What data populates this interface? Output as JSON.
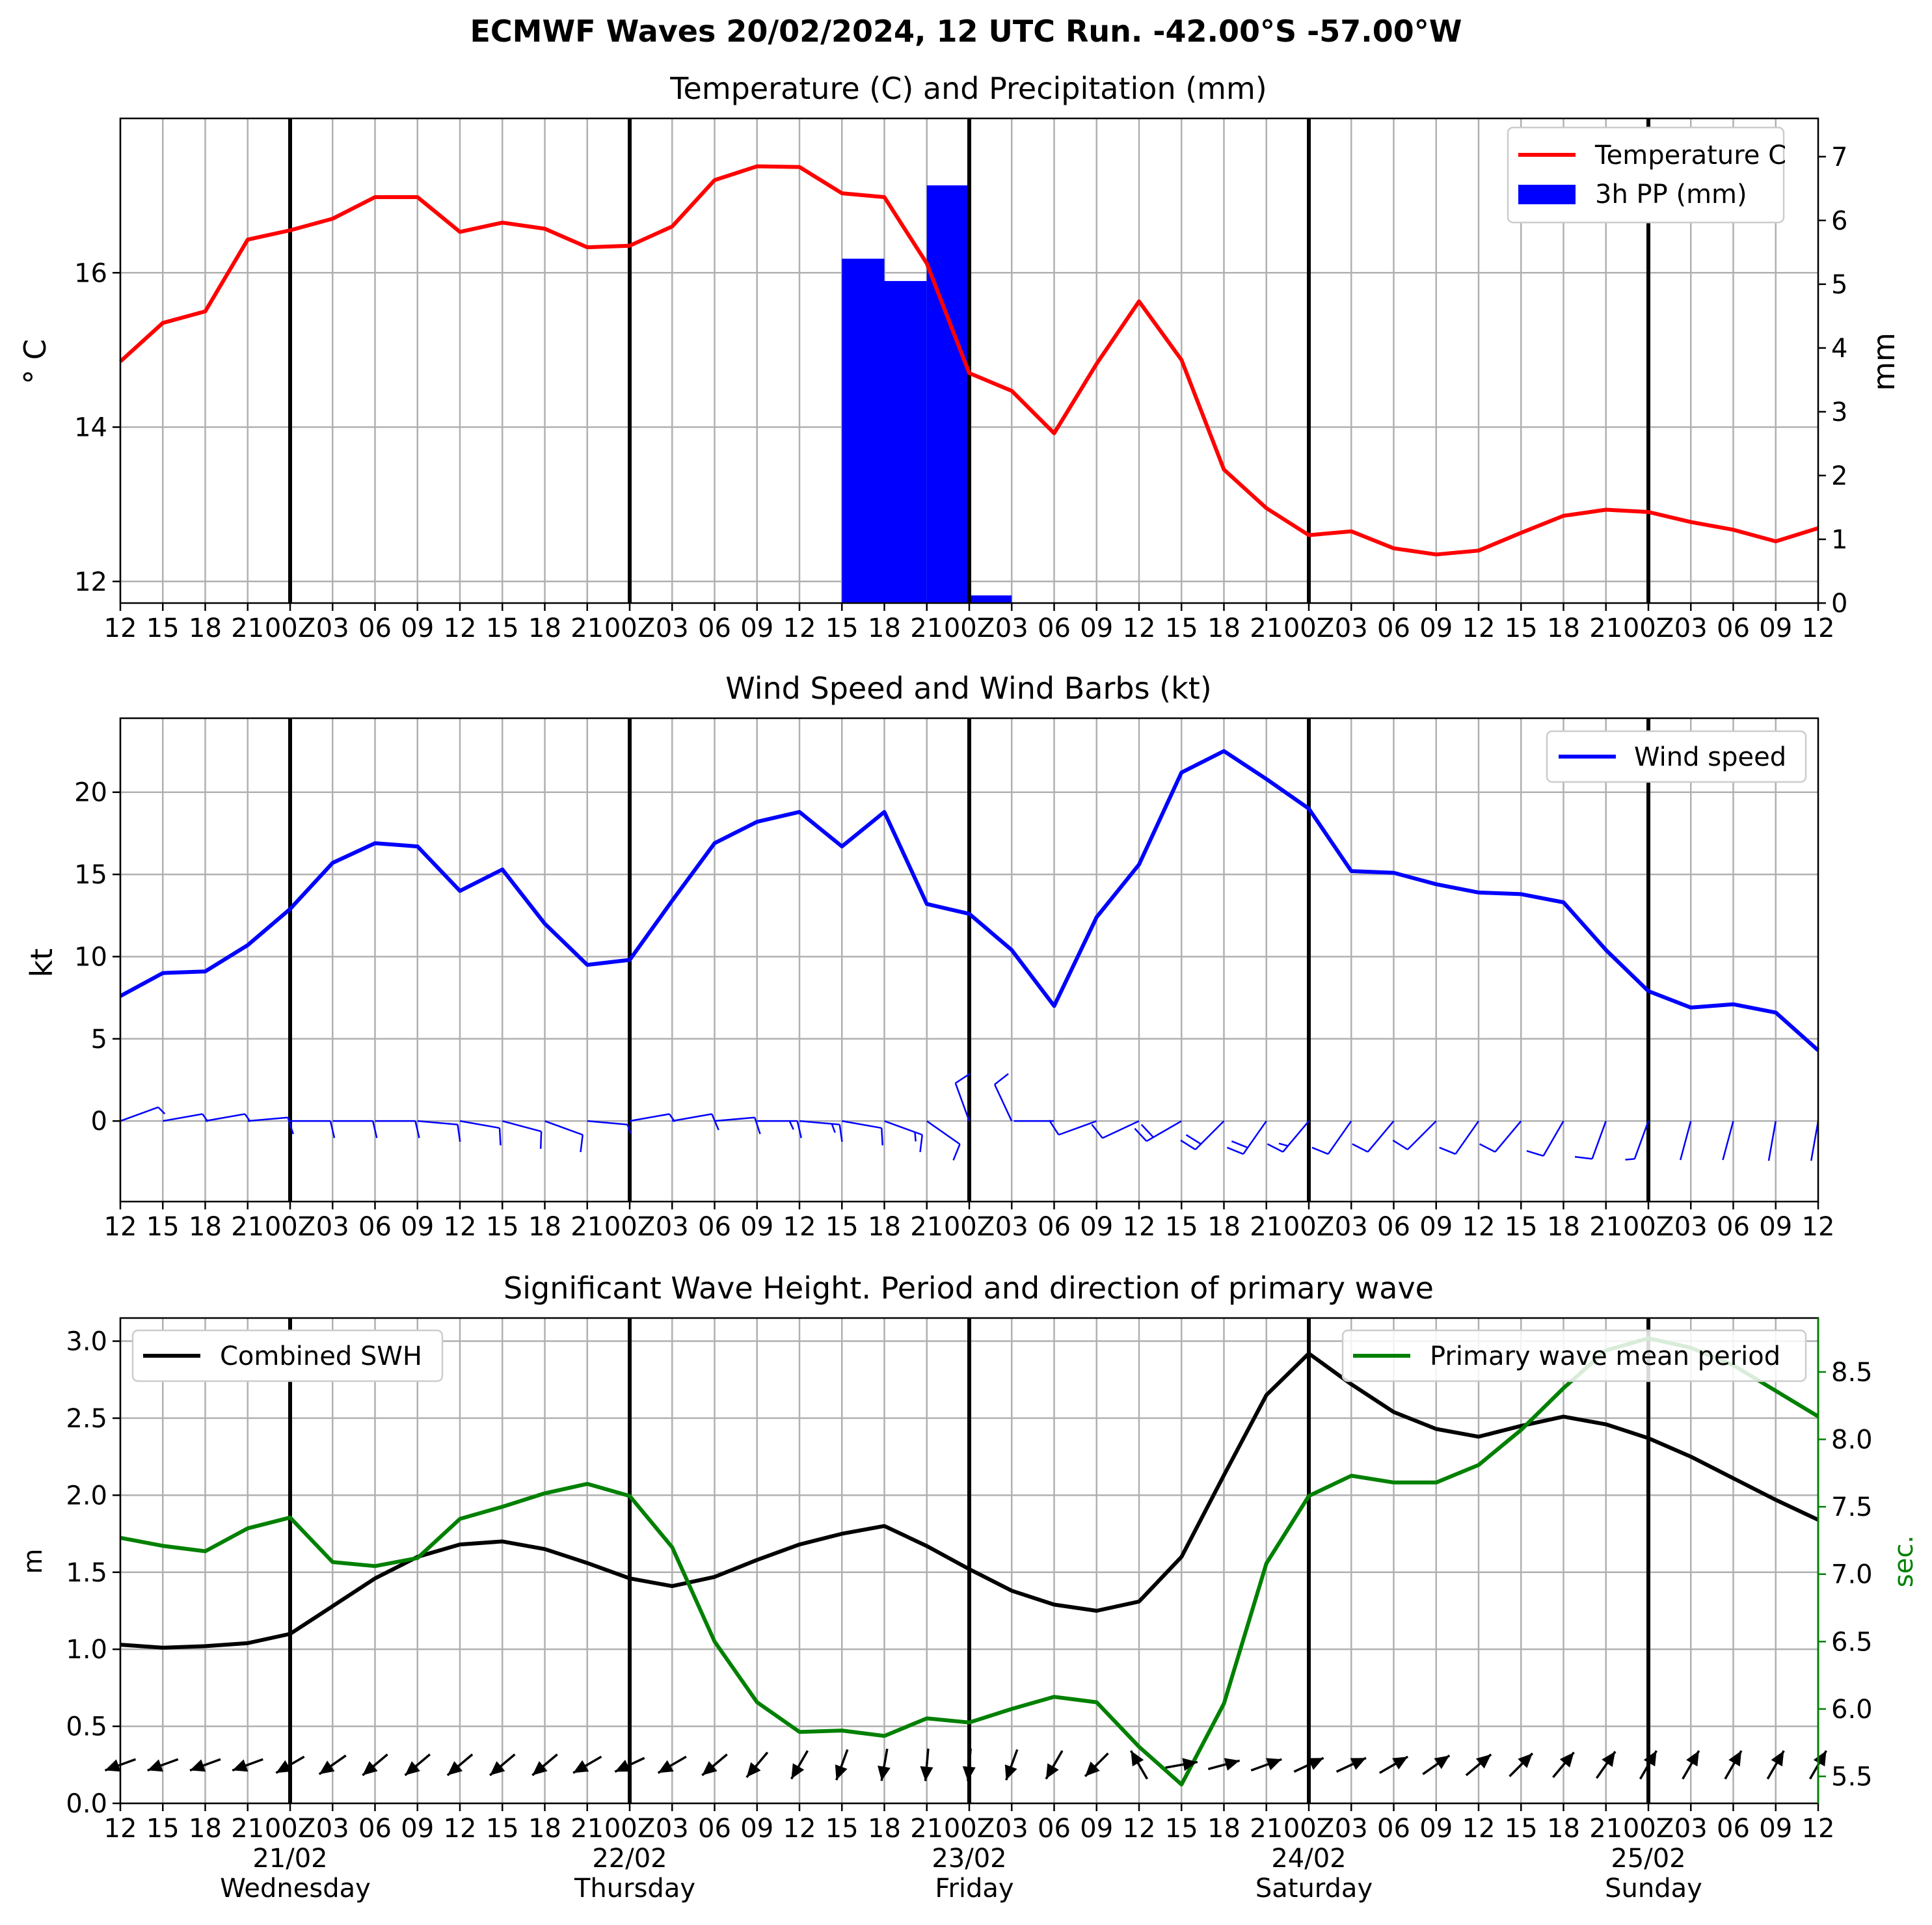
{
  "suptitle": "ECMWF Waves 20/02/2024, 12 UTC Run. -42.00°S -57.00°W",
  "x_tick_labels": [
    "12",
    "15",
    "18",
    "21",
    "00Z",
    "03",
    "06",
    "09",
    "12",
    "15",
    "18",
    "21",
    "00Z",
    "03",
    "06",
    "09",
    "12",
    "15",
    "18",
    "21",
    "00Z",
    "03",
    "06",
    "09",
    "12",
    "15",
    "18",
    "21",
    "00Z",
    "03",
    "06",
    "09",
    "12",
    "15",
    "18",
    "21",
    "00Z",
    "03",
    "06",
    "09",
    "12"
  ],
  "day_labels": [
    {
      "date": "21/02",
      "weekday": "Wednesday"
    },
    {
      "date": "22/02",
      "weekday": "Thursday"
    },
    {
      "date": "23/02",
      "weekday": "Friday"
    },
    {
      "date": "24/02",
      "weekday": "Saturday"
    },
    {
      "date": "25/02",
      "weekday": "Sunday"
    }
  ],
  "colors": {
    "temperature": "#ff0000",
    "precipitation": "#0000ff",
    "wind": "#0000ff",
    "swh": "#000000",
    "period": "#008000",
    "grid": "#b0b0b0"
  },
  "chart_data": [
    {
      "type": "line",
      "title": "Temperature (C) and Precipitation (mm)",
      "ylabel": "° C",
      "y2label": "mm",
      "ylim": [
        11.72,
        18.0
      ],
      "y2lim": [
        0,
        7.6
      ],
      "yticks": [
        12,
        14,
        16
      ],
      "y2ticks": [
        0,
        1,
        2,
        3,
        4,
        5,
        6,
        7
      ],
      "grid": true,
      "legend_position": "top-right",
      "series": [
        {
          "name": "Temperature C",
          "color": "#ff0000",
          "values": [
            14.85,
            15.35,
            15.5,
            16.43,
            16.55,
            16.7,
            16.98,
            16.98,
            16.53,
            16.65,
            16.57,
            16.33,
            16.35,
            16.6,
            17.2,
            17.38,
            17.37,
            17.03,
            16.98,
            16.12,
            14.7,
            14.47,
            13.92,
            14.82,
            15.63,
            14.87,
            13.45,
            12.95,
            12.6,
            12.65,
            12.43,
            12.35,
            12.4,
            12.63,
            12.85,
            12.93,
            12.9,
            12.77,
            12.67,
            12.52,
            12.69
          ]
        }
      ],
      "bars": {
        "name": "3h PP (mm)",
        "color": "#0000ff",
        "start_index": 17,
        "values": [
          5.4,
          5.05,
          6.55,
          0.12
        ]
      }
    },
    {
      "type": "line",
      "title": "Wind Speed and Wind Barbs (kt)",
      "ylabel": "kt",
      "ylim": [
        -4.9,
        24.5
      ],
      "yticks": [
        0,
        5,
        10,
        15,
        20
      ],
      "grid": true,
      "legend_position": "top-right",
      "series": [
        {
          "name": "Wind speed",
          "color": "#0000ff",
          "values": [
            7.6,
            9.0,
            9.1,
            10.7,
            12.9,
            15.7,
            16.9,
            16.7,
            14.0,
            15.3,
            12.0,
            9.5,
            9.8,
            13.4,
            16.9,
            18.2,
            18.8,
            16.7,
            18.8,
            13.2,
            12.6,
            10.4,
            7.0,
            12.4,
            15.6,
            21.2,
            22.5,
            20.8,
            19.0,
            15.2,
            15.1,
            14.4,
            13.9,
            13.8,
            13.3,
            10.4,
            7.9,
            6.9,
            7.1,
            6.6,
            4.3
          ]
        }
      ],
      "barbs": {
        "y_value": 0,
        "directions_deg": [
          70,
          80,
          80,
          85,
          90,
          90,
          90,
          95,
          100,
          105,
          110,
          95,
          80,
          80,
          85,
          90,
          95,
          100,
          110,
          125,
          340,
          335,
          270,
          250,
          245,
          240,
          225,
          215,
          220,
          215,
          220,
          225,
          215,
          220,
          210,
          200,
          200,
          195,
          195,
          190,
          190
        ],
        "speeds_kt": [
          7.6,
          9.0,
          9.1,
          10.7,
          12.9,
          15.7,
          16.9,
          16.7,
          14.0,
          15.3,
          12.0,
          9.5,
          9.8,
          13.4,
          16.9,
          18.2,
          18.8,
          16.7,
          18.8,
          13.2,
          12.6,
          10.4,
          7.0,
          12.4,
          15.6,
          21.2,
          22.5,
          20.8,
          19.0,
          15.2,
          15.1,
          14.4,
          13.9,
          13.8,
          13.3,
          10.4,
          7.9,
          6.9,
          7.1,
          6.6,
          4.3
        ]
      }
    },
    {
      "type": "line",
      "title": "Significant Wave Height. Period and direction of primary wave",
      "ylabel": "m",
      "y2label": "sec.",
      "ylim": [
        0.0,
        3.15
      ],
      "y2lim": [
        5.3,
        8.9
      ],
      "yticks": [
        0.0,
        0.5,
        1.0,
        1.5,
        2.0,
        2.5,
        3.0
      ],
      "y2ticks": [
        5.5,
        6.0,
        6.5,
        7.0,
        7.5,
        8.0,
        8.5
      ],
      "grid": true,
      "series": [
        {
          "name": "Combined SWH",
          "color": "#000000",
          "legend_position": "top-left",
          "values": [
            1.03,
            1.01,
            1.02,
            1.04,
            1.1,
            1.28,
            1.46,
            1.6,
            1.68,
            1.7,
            1.65,
            1.56,
            1.46,
            1.41,
            1.47,
            1.58,
            1.68,
            1.75,
            1.8,
            1.67,
            1.52,
            1.38,
            1.29,
            1.25,
            1.31,
            1.6,
            2.13,
            2.65,
            2.92,
            2.72,
            2.54,
            2.43,
            2.38,
            2.45,
            2.51,
            2.46,
            2.37,
            2.25,
            2.11,
            1.97,
            1.84
          ]
        },
        {
          "name": "Primary wave mean period",
          "color": "#008000",
          "axis": "right",
          "legend_position": "top-right",
          "values": [
            7.27,
            7.21,
            7.17,
            7.34,
            7.42,
            7.09,
            7.06,
            7.12,
            7.41,
            7.5,
            7.6,
            7.67,
            7.58,
            7.2,
            6.5,
            6.05,
            5.83,
            5.84,
            5.8,
            5.93,
            5.9,
            6.0,
            6.09,
            6.05,
            5.72,
            5.44,
            6.04,
            7.08,
            7.58,
            7.73,
            7.68,
            7.68,
            7.81,
            8.07,
            8.38,
            8.66,
            8.75,
            8.68,
            8.55,
            8.36,
            8.17
          ]
        }
      ],
      "arrows": {
        "y_value": 0.25,
        "directions_deg": [
          250,
          250,
          250,
          250,
          240,
          235,
          230,
          230,
          230,
          230,
          230,
          240,
          245,
          240,
          230,
          220,
          210,
          200,
          190,
          185,
          185,
          200,
          210,
          225,
          330,
          80,
          75,
          70,
          65,
          65,
          60,
          55,
          50,
          45,
          40,
          35,
          30,
          30,
          30,
          30,
          30
        ]
      }
    }
  ]
}
